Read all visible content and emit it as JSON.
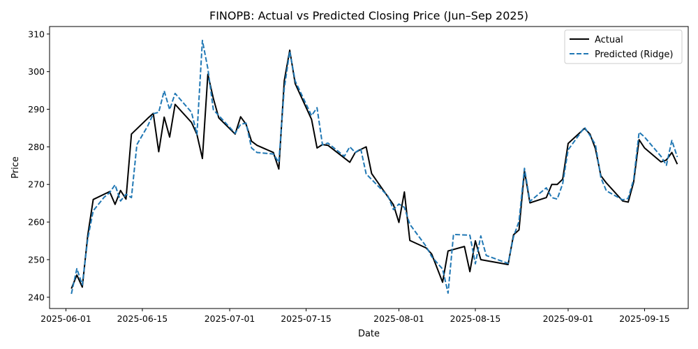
{
  "chart_data": {
    "type": "line",
    "title": "FINOPB: Actual vs Predicted Closing Price (Jun–Sep 2025)",
    "xlabel": "Date",
    "ylabel": "Price",
    "xlim": [
      "2025-05-29",
      "2025-09-23"
    ],
    "ylim": [
      237,
      312
    ],
    "x_ticks": [
      "2025-06-01",
      "2025-06-15",
      "2025-07-01",
      "2025-07-15",
      "2025-08-01",
      "2025-08-15",
      "2025-09-01",
      "2025-09-15"
    ],
    "y_ticks": [
      240,
      250,
      260,
      270,
      280,
      290,
      300,
      310
    ],
    "grid": false,
    "legend_position": "top-right",
    "series": [
      {
        "name": "Actual",
        "color": "#000000",
        "style": "solid",
        "points": [
          [
            "2025-06-02",
            242.3
          ],
          [
            "2025-06-03",
            245.9
          ],
          [
            "2025-06-04",
            242.7
          ],
          [
            "2025-06-05",
            256.5
          ],
          [
            "2025-06-06",
            266.0
          ],
          [
            "2025-06-09",
            268.1
          ],
          [
            "2025-06-10",
            264.7
          ],
          [
            "2025-06-11",
            268.4
          ],
          [
            "2025-06-12",
            266.1
          ],
          [
            "2025-06-13",
            283.4
          ],
          [
            "2025-06-16",
            287.6
          ],
          [
            "2025-06-17",
            288.9
          ],
          [
            "2025-06-18",
            278.7
          ],
          [
            "2025-06-19",
            287.9
          ],
          [
            "2025-06-20",
            282.6
          ],
          [
            "2025-06-21",
            291.3
          ],
          [
            "2025-06-24",
            286.5
          ],
          [
            "2025-06-25",
            283.3
          ],
          [
            "2025-06-26",
            276.9
          ],
          [
            "2025-06-27",
            299.3
          ],
          [
            "2025-06-28",
            292.9
          ],
          [
            "2025-06-29",
            287.7
          ],
          [
            "2025-07-02",
            283.4
          ],
          [
            "2025-07-03",
            288.0
          ],
          [
            "2025-07-04",
            286.0
          ],
          [
            "2025-07-05",
            281.5
          ],
          [
            "2025-07-06",
            280.4
          ],
          [
            "2025-07-09",
            278.5
          ],
          [
            "2025-07-10",
            274.1
          ],
          [
            "2025-07-11",
            297.6
          ],
          [
            "2025-07-12",
            305.7
          ],
          [
            "2025-07-13",
            296.8
          ],
          [
            "2025-07-16",
            287.3
          ],
          [
            "2025-07-17",
            279.7
          ],
          [
            "2025-07-18",
            280.6
          ],
          [
            "2025-07-19",
            280.4
          ],
          [
            "2025-07-23",
            275.9
          ],
          [
            "2025-07-24",
            278.5
          ],
          [
            "2025-07-25",
            279.3
          ],
          [
            "2025-07-26",
            280.0
          ],
          [
            "2025-07-27",
            272.9
          ],
          [
            "2025-07-31",
            264.6
          ],
          [
            "2025-08-01",
            259.9
          ],
          [
            "2025-08-02",
            268.0
          ],
          [
            "2025-08-03",
            255.1
          ],
          [
            "2025-08-06",
            253.1
          ],
          [
            "2025-08-07",
            251.5
          ],
          [
            "2025-08-09",
            244.0
          ],
          [
            "2025-08-10",
            252.3
          ],
          [
            "2025-08-13",
            253.5
          ],
          [
            "2025-08-14",
            246.8
          ],
          [
            "2025-08-15",
            255.0
          ],
          [
            "2025-08-16",
            250.0
          ],
          [
            "2025-08-21",
            248.7
          ],
          [
            "2025-08-22",
            256.6
          ],
          [
            "2025-08-23",
            257.9
          ],
          [
            "2025-08-24",
            273.6
          ],
          [
            "2025-08-25",
            265.1
          ],
          [
            "2025-08-28",
            266.5
          ],
          [
            "2025-08-29",
            270.0
          ],
          [
            "2025-08-30",
            270.0
          ],
          [
            "2025-08-31",
            271.4
          ],
          [
            "2025-09-01",
            280.9
          ],
          [
            "2025-09-04",
            284.9
          ],
          [
            "2025-09-05",
            283.4
          ],
          [
            "2025-09-06",
            279.5
          ],
          [
            "2025-09-07",
            272.3
          ],
          [
            "2025-09-08",
            270.4
          ],
          [
            "2025-09-11",
            265.6
          ],
          [
            "2025-09-12",
            265.3
          ],
          [
            "2025-09-13",
            270.6
          ],
          [
            "2025-09-14",
            281.9
          ],
          [
            "2025-09-15",
            279.7
          ],
          [
            "2025-09-18",
            276.0
          ],
          [
            "2025-09-19",
            276.5
          ],
          [
            "2025-09-20",
            278.5
          ],
          [
            "2025-09-21",
            275.4
          ]
        ]
      },
      {
        "name": "Predicted (Ridge)",
        "color": "#1f77b4",
        "style": "dashed",
        "points": [
          [
            "2025-06-02",
            240.9
          ],
          [
            "2025-06-03",
            247.6
          ],
          [
            "2025-06-04",
            243.3
          ],
          [
            "2025-06-05",
            255.6
          ],
          [
            "2025-06-06",
            263.0
          ],
          [
            "2025-06-08",
            266.6
          ],
          [
            "2025-06-09",
            267.8
          ],
          [
            "2025-06-10",
            269.9
          ],
          [
            "2025-06-11",
            265.6
          ],
          [
            "2025-06-12",
            267.4
          ],
          [
            "2025-06-13",
            266.5
          ],
          [
            "2025-06-14",
            280.6
          ],
          [
            "2025-06-16",
            285.6
          ],
          [
            "2025-06-17",
            288.8
          ],
          [
            "2025-06-18",
            289.2
          ],
          [
            "2025-06-19",
            294.9
          ],
          [
            "2025-06-20",
            289.9
          ],
          [
            "2025-06-21",
            294.2
          ],
          [
            "2025-06-24",
            289.2
          ],
          [
            "2025-06-25",
            283.3
          ],
          [
            "2025-06-26",
            308.3
          ],
          [
            "2025-06-27",
            300.8
          ],
          [
            "2025-06-28",
            289.9
          ],
          [
            "2025-07-02",
            283.6
          ],
          [
            "2025-07-03",
            286.0
          ],
          [
            "2025-07-04",
            286.3
          ],
          [
            "2025-07-05",
            279.7
          ],
          [
            "2025-07-06",
            278.5
          ],
          [
            "2025-07-09",
            278.1
          ],
          [
            "2025-07-10",
            275.9
          ],
          [
            "2025-07-11",
            295.6
          ],
          [
            "2025-07-12",
            305.4
          ],
          [
            "2025-07-13",
            297.5
          ],
          [
            "2025-07-16",
            288.3
          ],
          [
            "2025-07-17",
            290.4
          ],
          [
            "2025-07-18",
            280.5
          ],
          [
            "2025-07-19",
            281.0
          ],
          [
            "2025-07-22",
            277.5
          ],
          [
            "2025-07-23",
            280.0
          ],
          [
            "2025-07-24",
            278.5
          ],
          [
            "2025-07-25",
            279.5
          ],
          [
            "2025-07-26",
            272.8
          ],
          [
            "2025-07-30",
            266.9
          ],
          [
            "2025-07-31",
            263.3
          ],
          [
            "2025-08-01",
            264.8
          ],
          [
            "2025-08-02",
            263.9
          ],
          [
            "2025-08-03",
            259.4
          ],
          [
            "2025-08-06",
            253.5
          ],
          [
            "2025-08-07",
            250.8
          ],
          [
            "2025-08-09",
            247.5
          ],
          [
            "2025-08-10",
            241.1
          ],
          [
            "2025-08-11",
            256.7
          ],
          [
            "2025-08-14",
            256.5
          ],
          [
            "2025-08-15",
            248.9
          ],
          [
            "2025-08-16",
            256.3
          ],
          [
            "2025-08-17",
            251.1
          ],
          [
            "2025-08-21",
            249.0
          ],
          [
            "2025-08-22",
            256.1
          ],
          [
            "2025-08-23",
            260.2
          ],
          [
            "2025-08-24",
            274.3
          ],
          [
            "2025-08-25",
            265.5
          ],
          [
            "2025-08-28",
            269.1
          ],
          [
            "2025-08-29",
            266.5
          ],
          [
            "2025-08-30",
            266.1
          ],
          [
            "2025-08-31",
            270.2
          ],
          [
            "2025-09-01",
            279.2
          ],
          [
            "2025-09-04",
            285.2
          ],
          [
            "2025-09-05",
            283.0
          ],
          [
            "2025-09-06",
            280.6
          ],
          [
            "2025-09-07",
            271.8
          ],
          [
            "2025-09-08",
            268.3
          ],
          [
            "2025-09-11",
            265.9
          ],
          [
            "2025-09-12",
            266.3
          ],
          [
            "2025-09-13",
            271.3
          ],
          [
            "2025-09-14",
            283.9
          ],
          [
            "2025-09-15",
            282.6
          ],
          [
            "2025-09-18",
            277.5
          ],
          [
            "2025-09-19",
            275.1
          ],
          [
            "2025-09-20",
            281.7
          ],
          [
            "2025-09-21",
            277.3
          ]
        ]
      }
    ]
  }
}
